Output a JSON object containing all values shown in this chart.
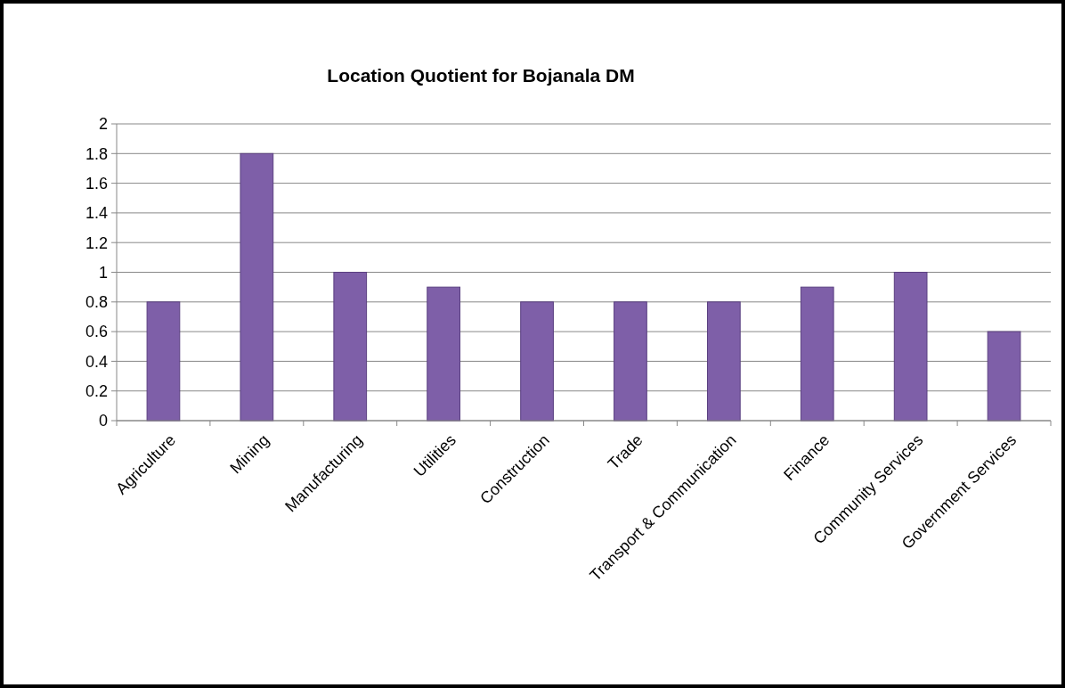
{
  "chart_data": {
    "type": "bar",
    "title": "Location Quotient for Bojanala DM",
    "categories": [
      "Agriculture",
      "Mining",
      "Manufacturing",
      "Utilities",
      "Construction",
      "Trade",
      "Transport & Communication",
      "Finance",
      "Community Services",
      "Government Services"
    ],
    "values": [
      0.8,
      1.8,
      1.0,
      0.9,
      0.8,
      0.8,
      0.8,
      0.9,
      1.0,
      0.6
    ],
    "color": "#7e5fa8",
    "ylim": [
      0,
      2
    ],
    "yticks": [
      0,
      0.2,
      0.4,
      0.6,
      0.8,
      1,
      1.2,
      1.4,
      1.6,
      1.8,
      2
    ],
    "grid": "y"
  }
}
